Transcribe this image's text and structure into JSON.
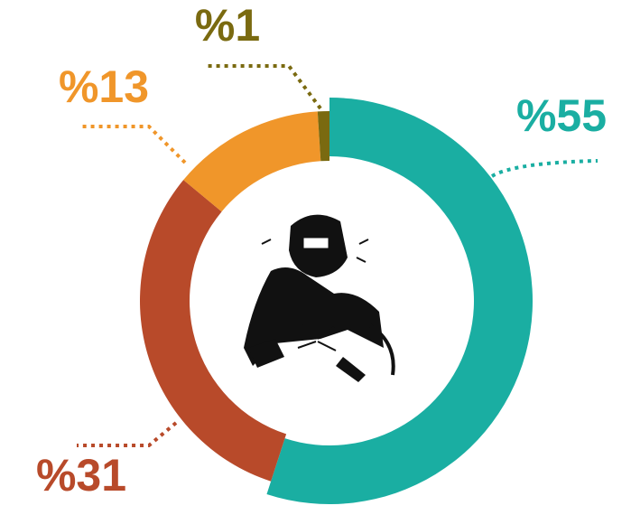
{
  "chart_data": {
    "type": "donut",
    "values": [
      55,
      31,
      13,
      1
    ],
    "value_labels": [
      "%55",
      "%31",
      "%13",
      "%1"
    ],
    "colors": [
      "#1aaea2",
      "#b84a2a",
      "#f0962a",
      "#7a6a10"
    ]
  }
}
